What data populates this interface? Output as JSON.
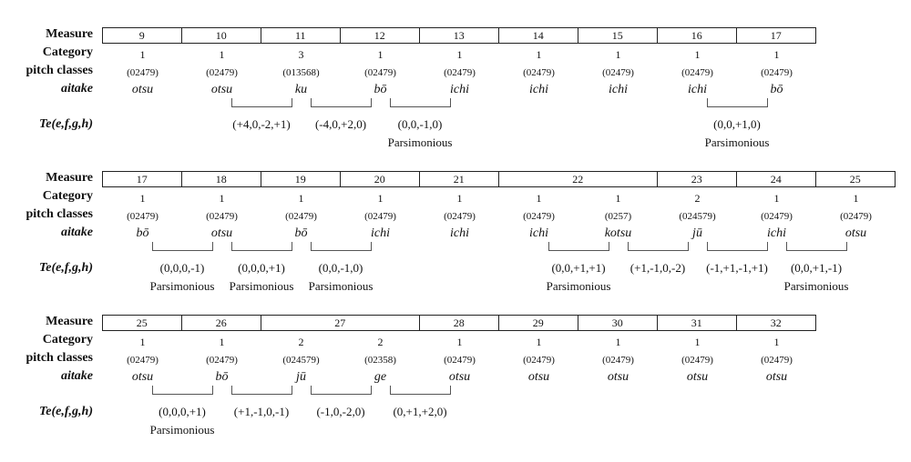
{
  "headers": {
    "measure": "Measure",
    "category": "Category",
    "pitch_classes": "pitch classes",
    "aitake": "aitake",
    "te": "Te(e,f,g,h)"
  },
  "systems": [
    {
      "measures": [
        {
          "label": "9",
          "span": 1
        },
        {
          "label": "10",
          "span": 1
        },
        {
          "label": "11",
          "span": 1
        },
        {
          "label": "12",
          "span": 1
        },
        {
          "label": "13",
          "span": 1
        },
        {
          "label": "14",
          "span": 1
        },
        {
          "label": "15",
          "span": 1
        },
        {
          "label": "16",
          "span": 1
        },
        {
          "label": "17",
          "span": 1
        }
      ],
      "events": [
        {
          "category": "1",
          "pc": "(02479)",
          "aitake": "otsu"
        },
        {
          "category": "1",
          "pc": "(02479)",
          "aitake": "otsu"
        },
        {
          "category": "3",
          "pc": "(013568)",
          "aitake": "ku"
        },
        {
          "category": "1",
          "pc": "(02479)",
          "aitake": "bō"
        },
        {
          "category": "1",
          "pc": "(02479)",
          "aitake": "ichi"
        },
        {
          "category": "1",
          "pc": "(02479)",
          "aitake": "ichi"
        },
        {
          "category": "1",
          "pc": "(02479)",
          "aitake": "ichi"
        },
        {
          "category": "1",
          "pc": "(02479)",
          "aitake": "ichi"
        },
        {
          "category": "1",
          "pc": "(02479)",
          "aitake": "bō"
        }
      ],
      "transitions": [
        {
          "from": 1,
          "te": "(+4,0,-2,+1)",
          "note": ""
        },
        {
          "from": 2,
          "te": "(-4,0,+2,0)",
          "note": ""
        },
        {
          "from": 3,
          "te": "(0,0,-1,0)",
          "note": "Parsimonious"
        },
        {
          "from": 7,
          "te": "(0,0,+1,0)",
          "note": "Parsimonious"
        }
      ]
    },
    {
      "measures": [
        {
          "label": "17",
          "span": 1
        },
        {
          "label": "18",
          "span": 1
        },
        {
          "label": "19",
          "span": 1
        },
        {
          "label": "20",
          "span": 1
        },
        {
          "label": "21",
          "span": 1
        },
        {
          "label": "22",
          "span": 2
        },
        {
          "label": "23",
          "span": 1
        },
        {
          "label": "24",
          "span": 1
        },
        {
          "label": "25",
          "span": 1
        }
      ],
      "events": [
        {
          "category": "1",
          "pc": "(02479)",
          "aitake": "bō"
        },
        {
          "category": "1",
          "pc": "(02479)",
          "aitake": "otsu"
        },
        {
          "category": "1",
          "pc": "(02479)",
          "aitake": "bō"
        },
        {
          "category": "1",
          "pc": "(02479)",
          "aitake": "ichi"
        },
        {
          "category": "1",
          "pc": "(02479)",
          "aitake": "ichi"
        },
        {
          "category": "1",
          "pc": "(02479)",
          "aitake": "ichi"
        },
        {
          "category": "1",
          "pc": "(0257)",
          "aitake": "kotsu"
        },
        {
          "category": "2",
          "pc": "(024579)",
          "aitake": "jū"
        },
        {
          "category": "1",
          "pc": "(02479)",
          "aitake": "ichi"
        },
        {
          "category": "1",
          "pc": "(02479)",
          "aitake": "otsu"
        }
      ],
      "transitions": [
        {
          "from": 0,
          "te": "(0,0,0,-1)",
          "note": "Parsimonious"
        },
        {
          "from": 1,
          "te": "(0,0,0,+1)",
          "note": "Parsimonious"
        },
        {
          "from": 2,
          "te": "(0,0,-1,0)",
          "note": "Parsimonious"
        },
        {
          "from": 5,
          "te": "(0,0,+1,+1)",
          "note": "Parsimonious"
        },
        {
          "from": 6,
          "te": "(+1,-1,0,-2)",
          "note": ""
        },
        {
          "from": 7,
          "te": "(-1,+1,-1,+1)",
          "note": ""
        },
        {
          "from": 8,
          "te": "(0,0,+1,-1)",
          "note": "Parsimonious"
        }
      ]
    },
    {
      "measures": [
        {
          "label": "25",
          "span": 1
        },
        {
          "label": "26",
          "span": 1
        },
        {
          "label": "27",
          "span": 2
        },
        {
          "label": "28",
          "span": 1
        },
        {
          "label": "29",
          "span": 1
        },
        {
          "label": "30",
          "span": 1
        },
        {
          "label": "31",
          "span": 1
        },
        {
          "label": "32",
          "span": 1
        }
      ],
      "events": [
        {
          "category": "1",
          "pc": "(02479)",
          "aitake": "otsu"
        },
        {
          "category": "1",
          "pc": "(02479)",
          "aitake": "bō"
        },
        {
          "category": "2",
          "pc": "(024579)",
          "aitake": "jū"
        },
        {
          "category": "2",
          "pc": "(02358)",
          "aitake": "ge"
        },
        {
          "category": "1",
          "pc": "(02479)",
          "aitake": "otsu"
        },
        {
          "category": "1",
          "pc": "(02479)",
          "aitake": "otsu"
        },
        {
          "category": "1",
          "pc": "(02479)",
          "aitake": "otsu"
        },
        {
          "category": "1",
          "pc": "(02479)",
          "aitake": "otsu"
        },
        {
          "category": "1",
          "pc": "(02479)",
          "aitake": "otsu"
        }
      ],
      "transitions": [
        {
          "from": 0,
          "te": "(0,0,0,+1)",
          "note": "Parsimonious"
        },
        {
          "from": 1,
          "te": "(+1,-1,0,-1)",
          "note": ""
        },
        {
          "from": 2,
          "te": "(-1,0,-2,0)",
          "note": ""
        },
        {
          "from": 3,
          "te": "(0,+1,+2,0)",
          "note": ""
        }
      ]
    }
  ]
}
